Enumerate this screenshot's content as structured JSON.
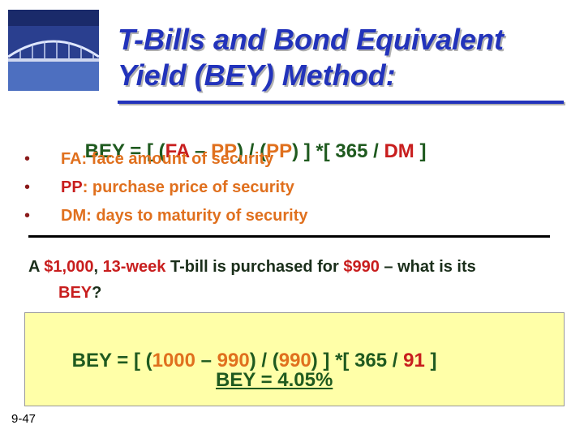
{
  "title": {
    "lines": [
      "T-Bills and Bond Equivalent",
      "Yield (BEY) Method:"
    ]
  },
  "formula": [
    "BEY = [ (",
    "FA",
    " – ",
    "PP",
    ") / (",
    "PP",
    ") ] *[ 365 / ",
    "DM",
    " ]"
  ],
  "bullets": [
    [
      "FA: face amount of security"
    ],
    [
      "PP",
      ": purchase price of security"
    ],
    [
      "DM: days to maturity of security"
    ]
  ],
  "question": [
    "A ",
    "$1,000",
    ", ",
    "13-week",
    " T-bill is purchased for ",
    "$990",
    " – what is its",
    "BEY",
    "?"
  ],
  "example": {
    "formula": [
      "BEY = [ (",
      "1000",
      " – ",
      "990",
      ") / (",
      "990",
      ") ] *[ 365 / ",
      "91",
      " ]"
    ],
    "result": "BEY = 4.05%"
  },
  "slide_number": "9-47"
}
